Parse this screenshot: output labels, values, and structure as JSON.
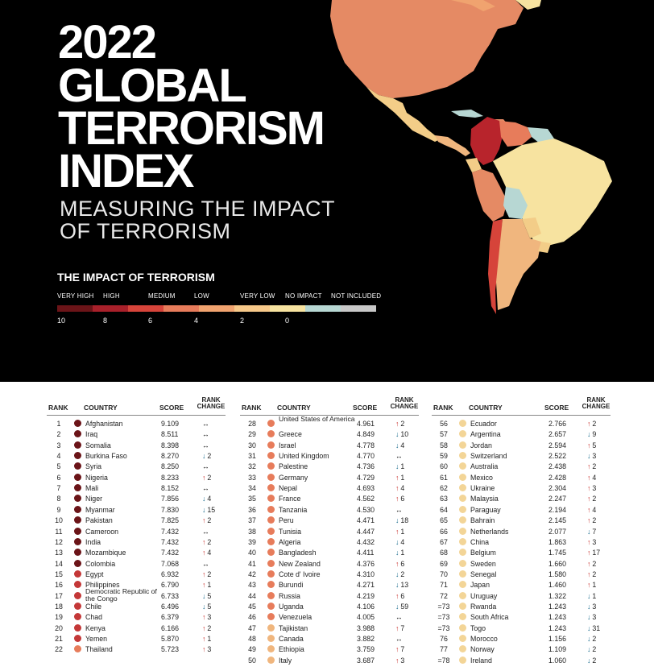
{
  "header": {
    "title_lines": [
      "2022",
      "GLOBAL",
      "TERRORISM",
      "INDEX"
    ],
    "subtitle_lines": [
      "MEASURING THE IMPACT",
      "OF TERRORISM"
    ]
  },
  "legend": {
    "title": "THE IMPACT OF TERRORISM",
    "categories": [
      "VERY HIGH",
      "HIGH",
      "MEDIUM",
      "LOW",
      "VERY LOW",
      "NO IMPACT",
      "NOT INCLUDED"
    ],
    "scale_values": [
      "10",
      "8",
      "6",
      "4",
      "2",
      "0"
    ],
    "colors": [
      "#6b1418",
      "#a8202a",
      "#d6443a",
      "#e77c5b",
      "#f0a36f",
      "#f6c889",
      "#f7e3a0",
      "#b7d7d3",
      "#c8c8c8"
    ]
  },
  "table": {
    "headers": {
      "rank": "RANK",
      "country": "COUNTRY",
      "score": "SCORE",
      "rank_change_1": "RANK",
      "rank_change_2": "CHANGE"
    },
    "arrows": {
      "up": "↑",
      "down": "↓",
      "same": "↔"
    },
    "dot_colors": {
      "vh": "#6b1418",
      "h": "#c43838",
      "m": "#e77c5b",
      "l": "#f0b67e",
      "vl": "#f3d597"
    },
    "columns": [
      [
        {
          "rank": "1",
          "country": "Afghanistan",
          "score": "9.109",
          "dir": "same",
          "change": "",
          "lvl": "vh"
        },
        {
          "rank": "2",
          "country": "Iraq",
          "score": "8.511",
          "dir": "same",
          "change": "",
          "lvl": "vh"
        },
        {
          "rank": "3",
          "country": "Somalia",
          "score": "8.398",
          "dir": "same",
          "change": "",
          "lvl": "vh"
        },
        {
          "rank": "4",
          "country": "Burkina Faso",
          "score": "8.270",
          "dir": "down",
          "change": "2",
          "lvl": "vh"
        },
        {
          "rank": "5",
          "country": "Syria",
          "score": "8.250",
          "dir": "same",
          "change": "",
          "lvl": "vh"
        },
        {
          "rank": "6",
          "country": "Nigeria",
          "score": "8.233",
          "dir": "up",
          "change": "2",
          "lvl": "vh"
        },
        {
          "rank": "7",
          "country": "Mali",
          "score": "8.152",
          "dir": "same",
          "change": "",
          "lvl": "vh"
        },
        {
          "rank": "8",
          "country": "Niger",
          "score": "7.856",
          "dir": "down",
          "change": "4",
          "lvl": "vh"
        },
        {
          "rank": "9",
          "country": "Myanmar",
          "score": "7.830",
          "dir": "down",
          "change": "15",
          "lvl": "vh"
        },
        {
          "rank": "10",
          "country": "Pakistan",
          "score": "7.825",
          "dir": "up",
          "change": "2",
          "lvl": "vh"
        },
        {
          "rank": "11",
          "country": "Cameroon",
          "score": "7.432",
          "dir": "same",
          "change": "",
          "lvl": "vh"
        },
        {
          "rank": "12",
          "country": "India",
          "score": "7.432",
          "dir": "up",
          "change": "2",
          "lvl": "vh"
        },
        {
          "rank": "13",
          "country": "Mozambique",
          "score": "7.432",
          "dir": "up",
          "change": "4",
          "lvl": "vh"
        },
        {
          "rank": "14",
          "country": "Colombia",
          "score": "7.068",
          "dir": "same",
          "change": "",
          "lvl": "vh"
        },
        {
          "rank": "15",
          "country": "Egypt",
          "score": "6.932",
          "dir": "up",
          "change": "2",
          "lvl": "h"
        },
        {
          "rank": "16",
          "country": "Philippines",
          "score": "6.790",
          "dir": "up",
          "change": "1",
          "lvl": "h"
        },
        {
          "rank": "17",
          "country": "Democratic Republic of the Congo",
          "score": "6.733",
          "dir": "down",
          "change": "5",
          "lvl": "h",
          "two": true
        },
        {
          "rank": "18",
          "country": "Chile",
          "score": "6.496",
          "dir": "down",
          "change": "5",
          "lvl": "h"
        },
        {
          "rank": "19",
          "country": "Chad",
          "score": "6.379",
          "dir": "up",
          "change": "3",
          "lvl": "h"
        },
        {
          "rank": "20",
          "country": "Kenya",
          "score": "6.166",
          "dir": "up",
          "change": "2",
          "lvl": "h"
        },
        {
          "rank": "21",
          "country": "Yemen",
          "score": "5.870",
          "dir": "up",
          "change": "1",
          "lvl": "h"
        },
        {
          "rank": "22",
          "country": "Thailand",
          "score": "5.723",
          "dir": "up",
          "change": "3",
          "lvl": "m"
        }
      ],
      [
        {
          "rank": "28",
          "country": "United States of America",
          "score": "4.961",
          "dir": "up",
          "change": "2",
          "lvl": "m",
          "two": true
        },
        {
          "rank": "29",
          "country": "Greece",
          "score": "4.849",
          "dir": "down",
          "change": "10",
          "lvl": "m"
        },
        {
          "rank": "30",
          "country": "Israel",
          "score": "4.778",
          "dir": "down",
          "change": "4",
          "lvl": "m"
        },
        {
          "rank": "31",
          "country": "United Kingdom",
          "score": "4.770",
          "dir": "same",
          "change": "",
          "lvl": "m"
        },
        {
          "rank": "32",
          "country": "Palestine",
          "score": "4.736",
          "dir": "down",
          "change": "1",
          "lvl": "m"
        },
        {
          "rank": "33",
          "country": "Germany",
          "score": "4.729",
          "dir": "up",
          "change": "1",
          "lvl": "m"
        },
        {
          "rank": "34",
          "country": "Nepal",
          "score": "4.693",
          "dir": "up",
          "change": "4",
          "lvl": "m"
        },
        {
          "rank": "35",
          "country": "France",
          "score": "4.562",
          "dir": "up",
          "change": "6",
          "lvl": "m"
        },
        {
          "rank": "36",
          "country": "Tanzania",
          "score": "4.530",
          "dir": "same",
          "change": "",
          "lvl": "m"
        },
        {
          "rank": "37",
          "country": "Peru",
          "score": "4.471",
          "dir": "down",
          "change": "18",
          "lvl": "m"
        },
        {
          "rank": "38",
          "country": "Tunisia",
          "score": "4.447",
          "dir": "up",
          "change": "1",
          "lvl": "m"
        },
        {
          "rank": "39",
          "country": "Algeria",
          "score": "4.432",
          "dir": "down",
          "change": "4",
          "lvl": "m"
        },
        {
          "rank": "40",
          "country": "Bangladesh",
          "score": "4.411",
          "dir": "down",
          "change": "1",
          "lvl": "m"
        },
        {
          "rank": "41",
          "country": "New Zealand",
          "score": "4.376",
          "dir": "up",
          "change": "6",
          "lvl": "m"
        },
        {
          "rank": "42",
          "country": "Cote d' Ivoire",
          "score": "4.310",
          "dir": "down",
          "change": "2",
          "lvl": "m"
        },
        {
          "rank": "43",
          "country": "Burundi",
          "score": "4.271",
          "dir": "down",
          "change": "13",
          "lvl": "m"
        },
        {
          "rank": "44",
          "country": "Russia",
          "score": "4.219",
          "dir": "up",
          "change": "6",
          "lvl": "m"
        },
        {
          "rank": "45",
          "country": "Uganda",
          "score": "4.106",
          "dir": "down",
          "change": "59",
          "lvl": "m"
        },
        {
          "rank": "46",
          "country": "Venezuela",
          "score": "4.005",
          "dir": "same",
          "change": "",
          "lvl": "m"
        },
        {
          "rank": "47",
          "country": "Tajikistan",
          "score": "3.988",
          "dir": "up",
          "change": "7",
          "lvl": "l"
        },
        {
          "rank": "48",
          "country": "Canada",
          "score": "3.882",
          "dir": "same",
          "change": "",
          "lvl": "l"
        },
        {
          "rank": "49",
          "country": "Ethiopia",
          "score": "3.759",
          "dir": "up",
          "change": "7",
          "lvl": "l"
        },
        {
          "rank": "50",
          "country": "Italy",
          "score": "3.687",
          "dir": "up",
          "change": "3",
          "lvl": "l"
        }
      ],
      [
        {
          "rank": "56",
          "country": "Ecuador",
          "score": "2.766",
          "dir": "up",
          "change": "2",
          "lvl": "vl"
        },
        {
          "rank": "57",
          "country": "Argentina",
          "score": "2.657",
          "dir": "down",
          "change": "9",
          "lvl": "vl"
        },
        {
          "rank": "58",
          "country": "Jordan",
          "score": "2.594",
          "dir": "up",
          "change": "5",
          "lvl": "vl"
        },
        {
          "rank": "59",
          "country": "Switzerland",
          "score": "2.522",
          "dir": "down",
          "change": "3",
          "lvl": "vl"
        },
        {
          "rank": "60",
          "country": "Australia",
          "score": "2.438",
          "dir": "up",
          "change": "2",
          "lvl": "vl"
        },
        {
          "rank": "61",
          "country": "Mexico",
          "score": "2.428",
          "dir": "up",
          "change": "4",
          "lvl": "vl"
        },
        {
          "rank": "62",
          "country": "Ukraine",
          "score": "2.304",
          "dir": "up",
          "change": "3",
          "lvl": "vl"
        },
        {
          "rank": "63",
          "country": "Malaysia",
          "score": "2.247",
          "dir": "up",
          "change": "2",
          "lvl": "vl"
        },
        {
          "rank": "64",
          "country": "Paraguay",
          "score": "2.194",
          "dir": "up",
          "change": "4",
          "lvl": "vl"
        },
        {
          "rank": "65",
          "country": "Bahrain",
          "score": "2.145",
          "dir": "up",
          "change": "2",
          "lvl": "vl"
        },
        {
          "rank": "66",
          "country": "Netherlands",
          "score": "2.077",
          "dir": "down",
          "change": "7",
          "lvl": "vl"
        },
        {
          "rank": "67",
          "country": "China",
          "score": "1.863",
          "dir": "up",
          "change": "3",
          "lvl": "vl"
        },
        {
          "rank": "68",
          "country": "Belgium",
          "score": "1.745",
          "dir": "up",
          "change": "17",
          "lvl": "vl"
        },
        {
          "rank": "69",
          "country": "Sweden",
          "score": "1.660",
          "dir": "up",
          "change": "2",
          "lvl": "vl"
        },
        {
          "rank": "70",
          "country": "Senegal",
          "score": "1.580",
          "dir": "up",
          "change": "2",
          "lvl": "vl"
        },
        {
          "rank": "71",
          "country": "Japan",
          "score": "1.460",
          "dir": "up",
          "change": "1",
          "lvl": "vl"
        },
        {
          "rank": "72",
          "country": "Uruguay",
          "score": "1.322",
          "dir": "down",
          "change": "1",
          "lvl": "vl"
        },
        {
          "rank": "=73",
          "country": "Rwanda",
          "score": "1.243",
          "dir": "down",
          "change": "3",
          "lvl": "vl"
        },
        {
          "rank": "=73",
          "country": "South Africa",
          "score": "1.243",
          "dir": "down",
          "change": "3",
          "lvl": "vl"
        },
        {
          "rank": "=73",
          "country": "Togo",
          "score": "1.243",
          "dir": "down",
          "change": "31",
          "lvl": "vl"
        },
        {
          "rank": "76",
          "country": "Morocco",
          "score": "1.156",
          "dir": "down",
          "change": "2",
          "lvl": "vl"
        },
        {
          "rank": "77",
          "country": "Norway",
          "score": "1.109",
          "dir": "down",
          "change": "2",
          "lvl": "vl"
        },
        {
          "rank": "=78",
          "country": "Ireland",
          "score": "1.060",
          "dir": "down",
          "change": "2",
          "lvl": "vl"
        }
      ]
    ]
  }
}
